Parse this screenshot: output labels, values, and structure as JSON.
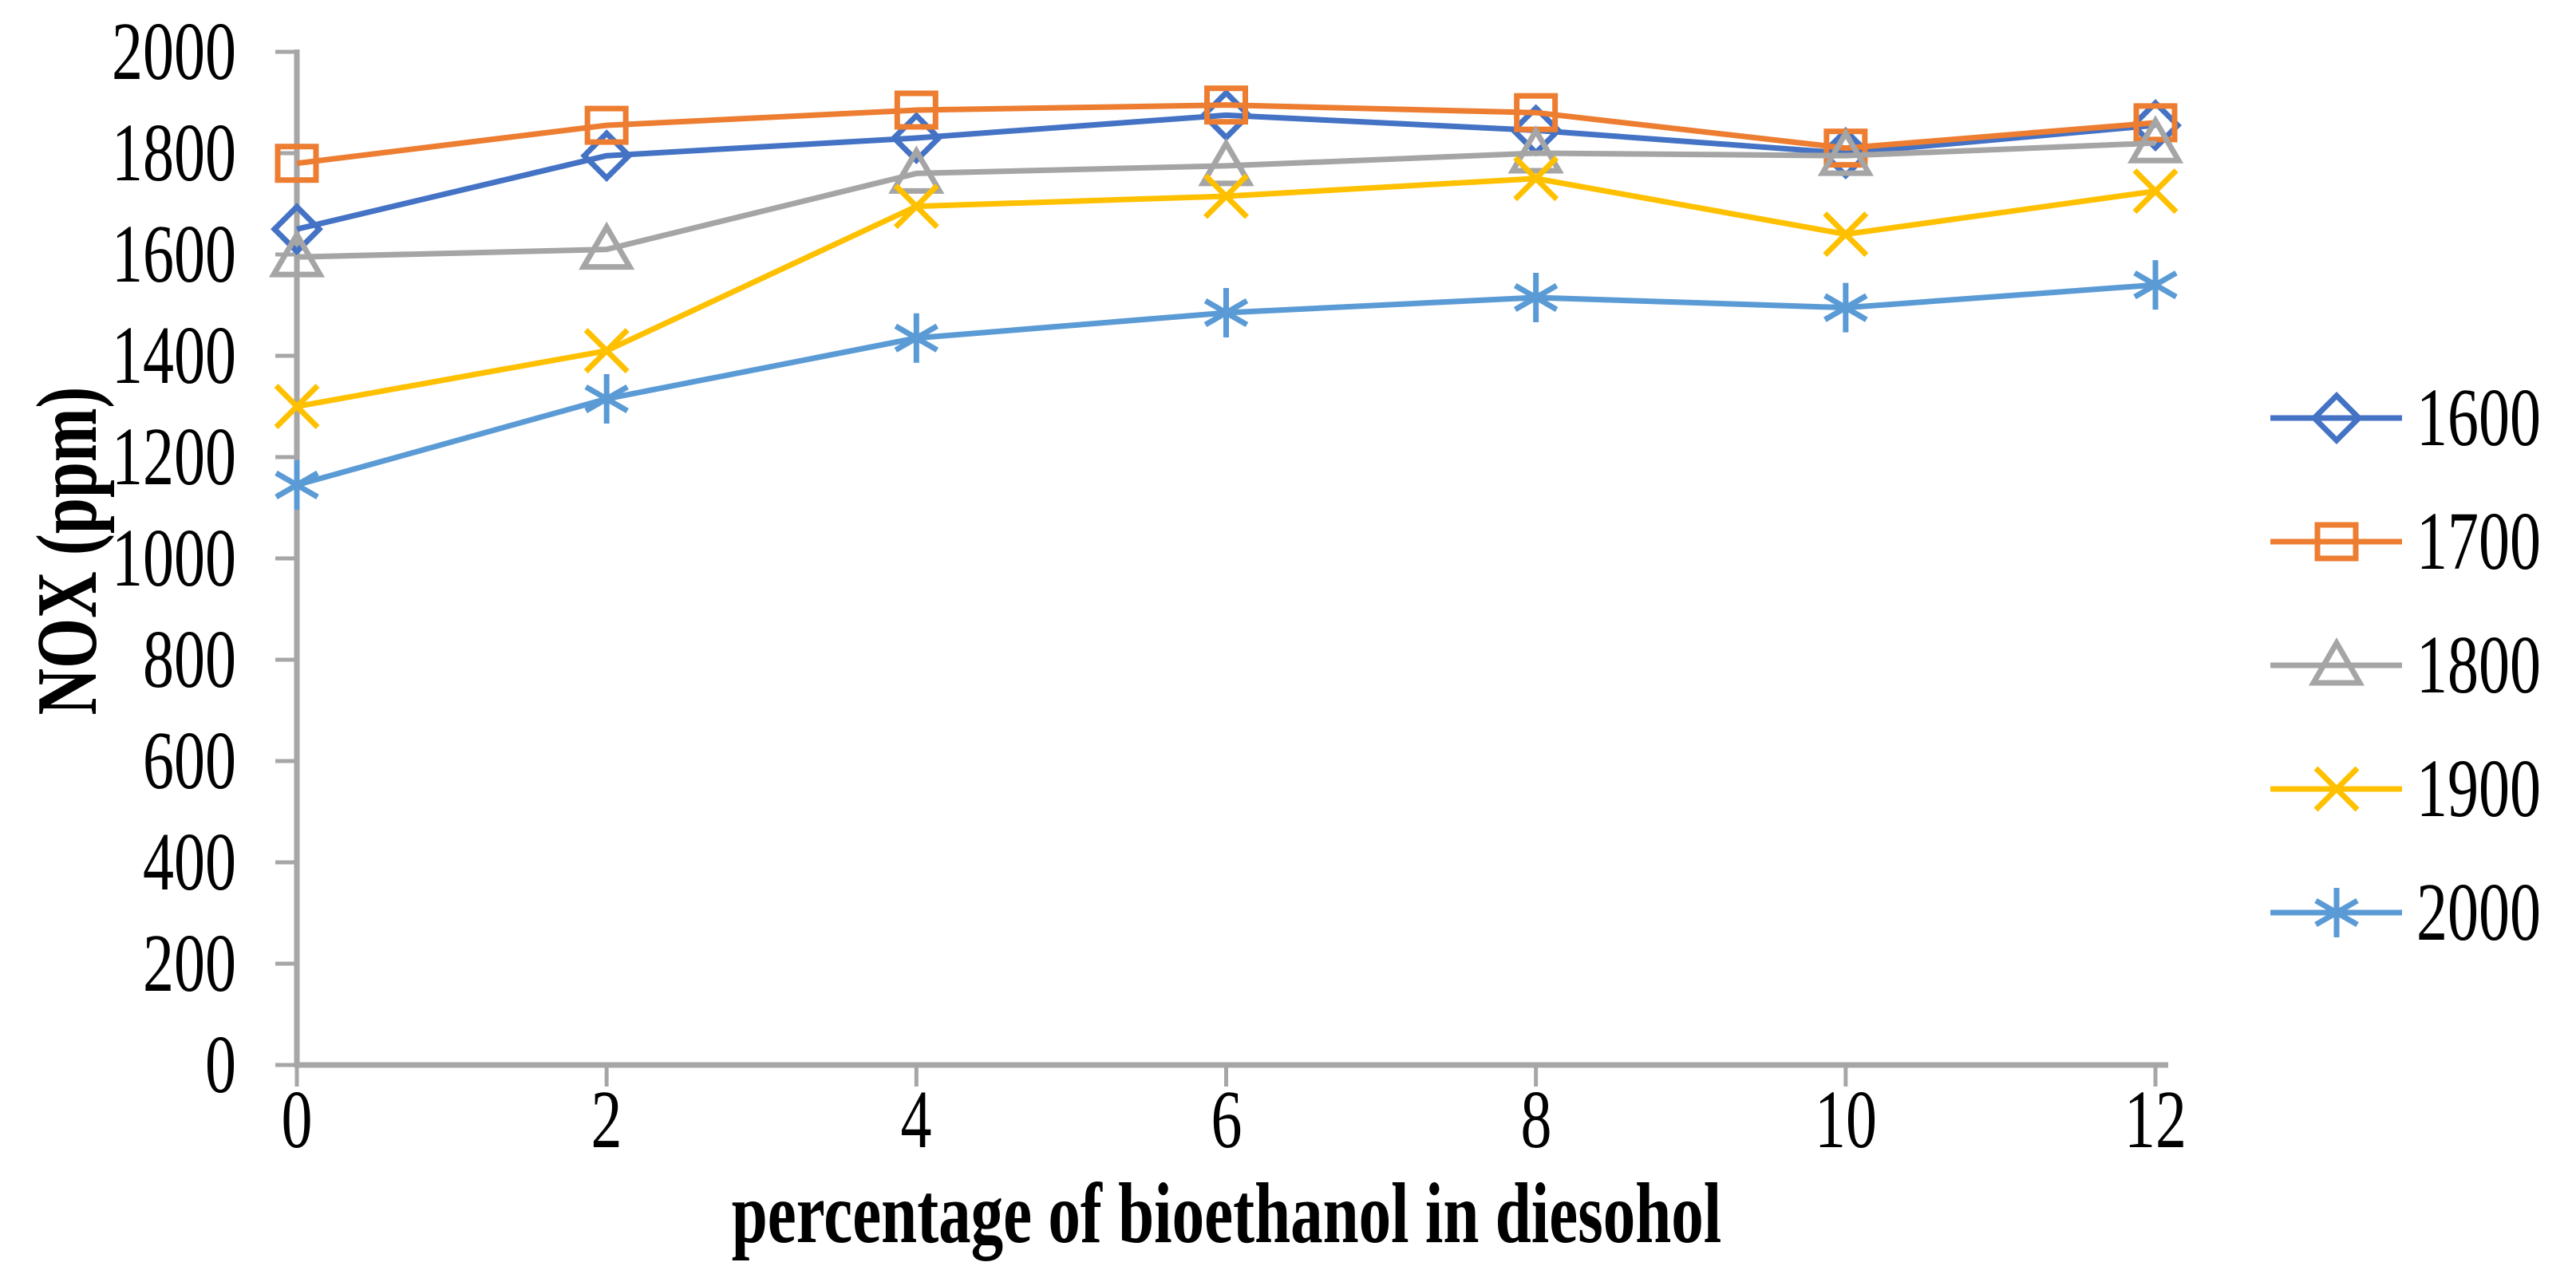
{
  "chart_data": {
    "type": "line",
    "title": "",
    "xlabel": "percentage of bioethanol in diesohol",
    "ylabel": "NOX (ppm)",
    "xlim": [
      0,
      12
    ],
    "ylim": [
      0,
      2000
    ],
    "x": [
      0,
      2,
      4,
      6,
      8,
      10,
      12
    ],
    "x_tick_labels": [
      "0",
      "2",
      "4",
      "6",
      "8",
      "10",
      "12"
    ],
    "y_ticks": [
      0,
      200,
      400,
      600,
      800,
      1000,
      1200,
      1400,
      1600,
      1800,
      2000
    ],
    "grid": false,
    "legend_position": "right",
    "axis_color": "#a6a6a6",
    "text_color": "#000000",
    "series": [
      {
        "name": "1600",
        "color": "#4472c4",
        "marker": "diamond",
        "values": [
          1650,
          1795,
          1830,
          1875,
          1845,
          1800,
          1855
        ]
      },
      {
        "name": "1700",
        "color": "#ed7d31",
        "marker": "square",
        "values": [
          1780,
          1855,
          1885,
          1895,
          1880,
          1810,
          1860
        ]
      },
      {
        "name": "1800",
        "color": "#a5a5a5",
        "marker": "triangle",
        "values": [
          1595,
          1610,
          1760,
          1775,
          1800,
          1795,
          1820
        ]
      },
      {
        "name": "1900",
        "color": "#ffc000",
        "marker": "x",
        "values": [
          1300,
          1410,
          1695,
          1715,
          1750,
          1640,
          1725
        ]
      },
      {
        "name": "2000",
        "color": "#5b9bd5",
        "marker": "asterisk",
        "values": [
          1145,
          1315,
          1435,
          1485,
          1515,
          1495,
          1540
        ]
      }
    ]
  }
}
